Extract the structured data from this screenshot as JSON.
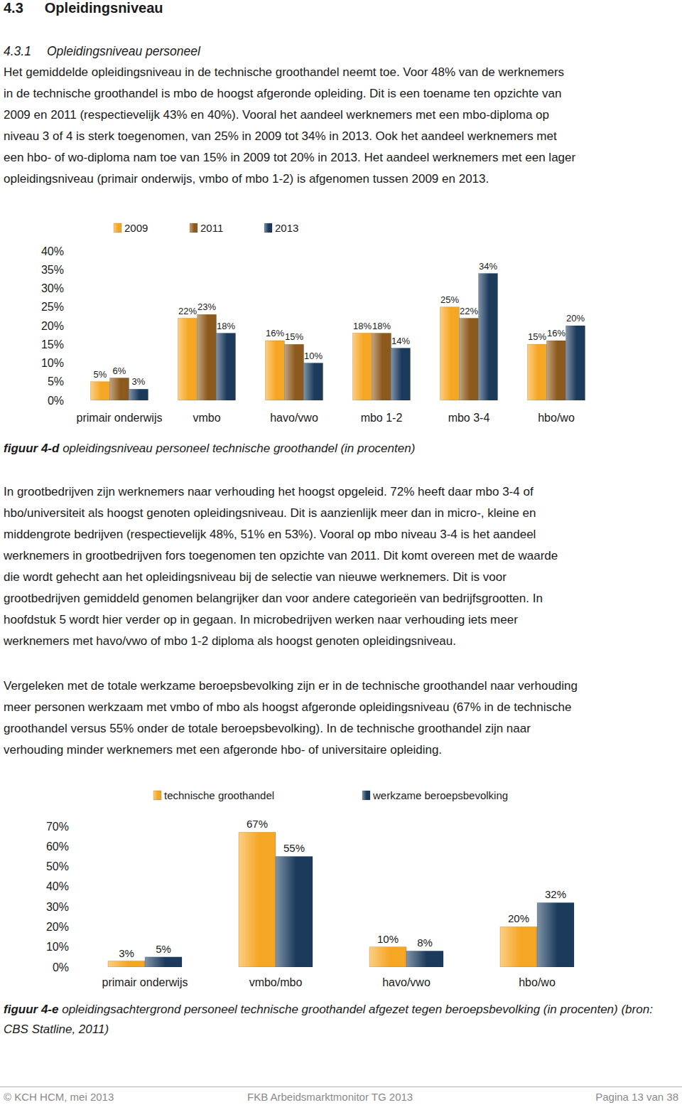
{
  "header": {
    "number": "4.3",
    "title": "Opleidingsniveau"
  },
  "subheader": {
    "number": "4.3.1",
    "title": "Opleidingsniveau personeel"
  },
  "paragraphs": [
    [
      "Het gemiddelde opleidingsniveau in de technische groothandel neemt toe. Voor 48% van de werknemers",
      "in de technische groothandel is mbo de hoogst afgeronde opleiding. Dit is een toename ten opzichte van",
      "2009 en 2011 (respectievelijk 43% en 40%). Vooral het aandeel werknemers met een mbo-diploma op",
      "niveau 3 of 4 is sterk toegenomen, van 25% in 2009 tot 34% in 2013. Ook het aandeel werknemers met",
      "een hbo- of wo-diploma nam toe van 15% in 2009 tot 20% in 2013. Het aandeel werknemers met een lager",
      "opleidingsniveau (primair onderwijs, vmbo of mbo 1-2) is afgenomen tussen 2009 en 2013."
    ],
    [
      "In grootbedrijven zijn werknemers naar verhouding het hoogst opgeleid. 72% heeft daar mbo 3-4 of",
      "hbo/universiteit als hoogst genoten opleidingsniveau. Dit is aanzienlijk meer dan in micro-, kleine en",
      "middengrote bedrijven (respectievelijk 48%, 51% en 53%). Vooral op mbo niveau 3-4 is het aandeel",
      "werknemers in grootbedrijven fors toegenomen ten opzichte van 2011. Dit komt overeen met de waarde",
      "die wordt gehecht aan het opleidingsniveau bij de selectie van nieuwe werknemers. Dit is voor",
      "grootbedrijven gemiddeld genomen belangrijker dan voor andere categorieën van bedrijfsgrootten. In",
      "hoofdstuk 5 wordt hier verder op in gegaan. In microbedrijven werken naar verhouding iets meer",
      "werknemers met havo/vwo of mbo 1-2 diploma als hoogst genoten opleidingsniveau."
    ],
    [
      "Vergeleken met de totale werkzame beroepsbevolking zijn er in de technische groothandel naar verhouding",
      "meer personen werkzaam met vmbo of mbo als hoogst afgeronde opleidingsniveau (67% in de technische",
      "groothandel versus 55% onder de totale beroepsbevolking). In de technische groothandel zijn naar",
      "verhouding minder werknemers met een afgeronde hbo- of universitaire opleiding."
    ]
  ],
  "captions": [
    {
      "label": "figuur 4-d",
      "text": "opleidingsniveau personeel technische groothandel (in procenten)"
    },
    {
      "label": "figuur 4-e",
      "text": "opleidingsachtergrond personeel technische groothandel afgezet tegen beroepsbevolking (in procenten) (bron: CBS Statline, 2011)"
    }
  ],
  "footer": {
    "left": "© KCH HCM, mei 2013",
    "center": "FKB Arbeidsmarktmonitor TG 2013",
    "right": "Pagina 13 van 38"
  },
  "chart_data": [
    {
      "type": "bar",
      "categories": [
        "primair onderwijs",
        "vmbo",
        "havo/vwo",
        "mbo 1-2",
        "mbo 3-4",
        "hbo/wo"
      ],
      "series": [
        {
          "name": "2009",
          "color": "#f5a623",
          "values": [
            5,
            22,
            16,
            18,
            25,
            15
          ],
          "value_labels": [
            "5%",
            "22%",
            "16%",
            "18%",
            "25%",
            "15%"
          ]
        },
        {
          "name": "2011",
          "color": "#8c5a1c",
          "values": [
            6,
            23,
            15,
            18,
            22,
            16
          ],
          "value_labels": [
            "6%",
            "23%",
            "15%",
            "18%",
            "22%",
            "16%"
          ]
        },
        {
          "name": "2013",
          "color": "#1b3a5c",
          "values": [
            3,
            18,
            10,
            14,
            34,
            20
          ],
          "value_labels": [
            "3%",
            "18%",
            "10%",
            "14%",
            "34%",
            "20%"
          ]
        }
      ],
      "ylim": [
        0,
        40
      ],
      "yticks": [
        {
          "value": 0,
          "label": "0%"
        },
        {
          "value": 5,
          "label": "5%"
        },
        {
          "value": 10,
          "label": "10%"
        },
        {
          "value": 15,
          "label": "15%"
        },
        {
          "value": 20,
          "label": "20%"
        },
        {
          "value": 25,
          "label": "25%"
        },
        {
          "value": 30,
          "label": "30%"
        },
        {
          "value": 35,
          "label": "35%"
        },
        {
          "value": 40,
          "label": "40%"
        }
      ],
      "grid": false,
      "legend": "top",
      "data_labels": true
    },
    {
      "type": "bar",
      "categories": [
        "primair onderwijs",
        "vmbo/mbo",
        "havo/vwo",
        "hbo/wo"
      ],
      "series": [
        {
          "name": "technische groothandel",
          "color": "#f5a623",
          "values": [
            3,
            67,
            10,
            20
          ],
          "value_labels": [
            "3%",
            "67%",
            "10%",
            "20%"
          ]
        },
        {
          "name": "werkzame beroepsbevolking",
          "color": "#1b3a5c",
          "values": [
            5,
            55,
            8,
            32
          ],
          "value_labels": [
            "5%",
            "55%",
            "8%",
            "32%"
          ]
        }
      ],
      "ylim": [
        0,
        70
      ],
      "yticks": [
        {
          "value": 0,
          "label": "0%"
        },
        {
          "value": 10,
          "label": "10%"
        },
        {
          "value": 20,
          "label": "20%"
        },
        {
          "value": 30,
          "label": "30%"
        },
        {
          "value": 40,
          "label": "40%"
        },
        {
          "value": 50,
          "label": "50%"
        },
        {
          "value": 60,
          "label": "60%"
        },
        {
          "value": 70,
          "label": "70%"
        }
      ],
      "grid": false,
      "legend": "top",
      "data_labels": true
    }
  ]
}
